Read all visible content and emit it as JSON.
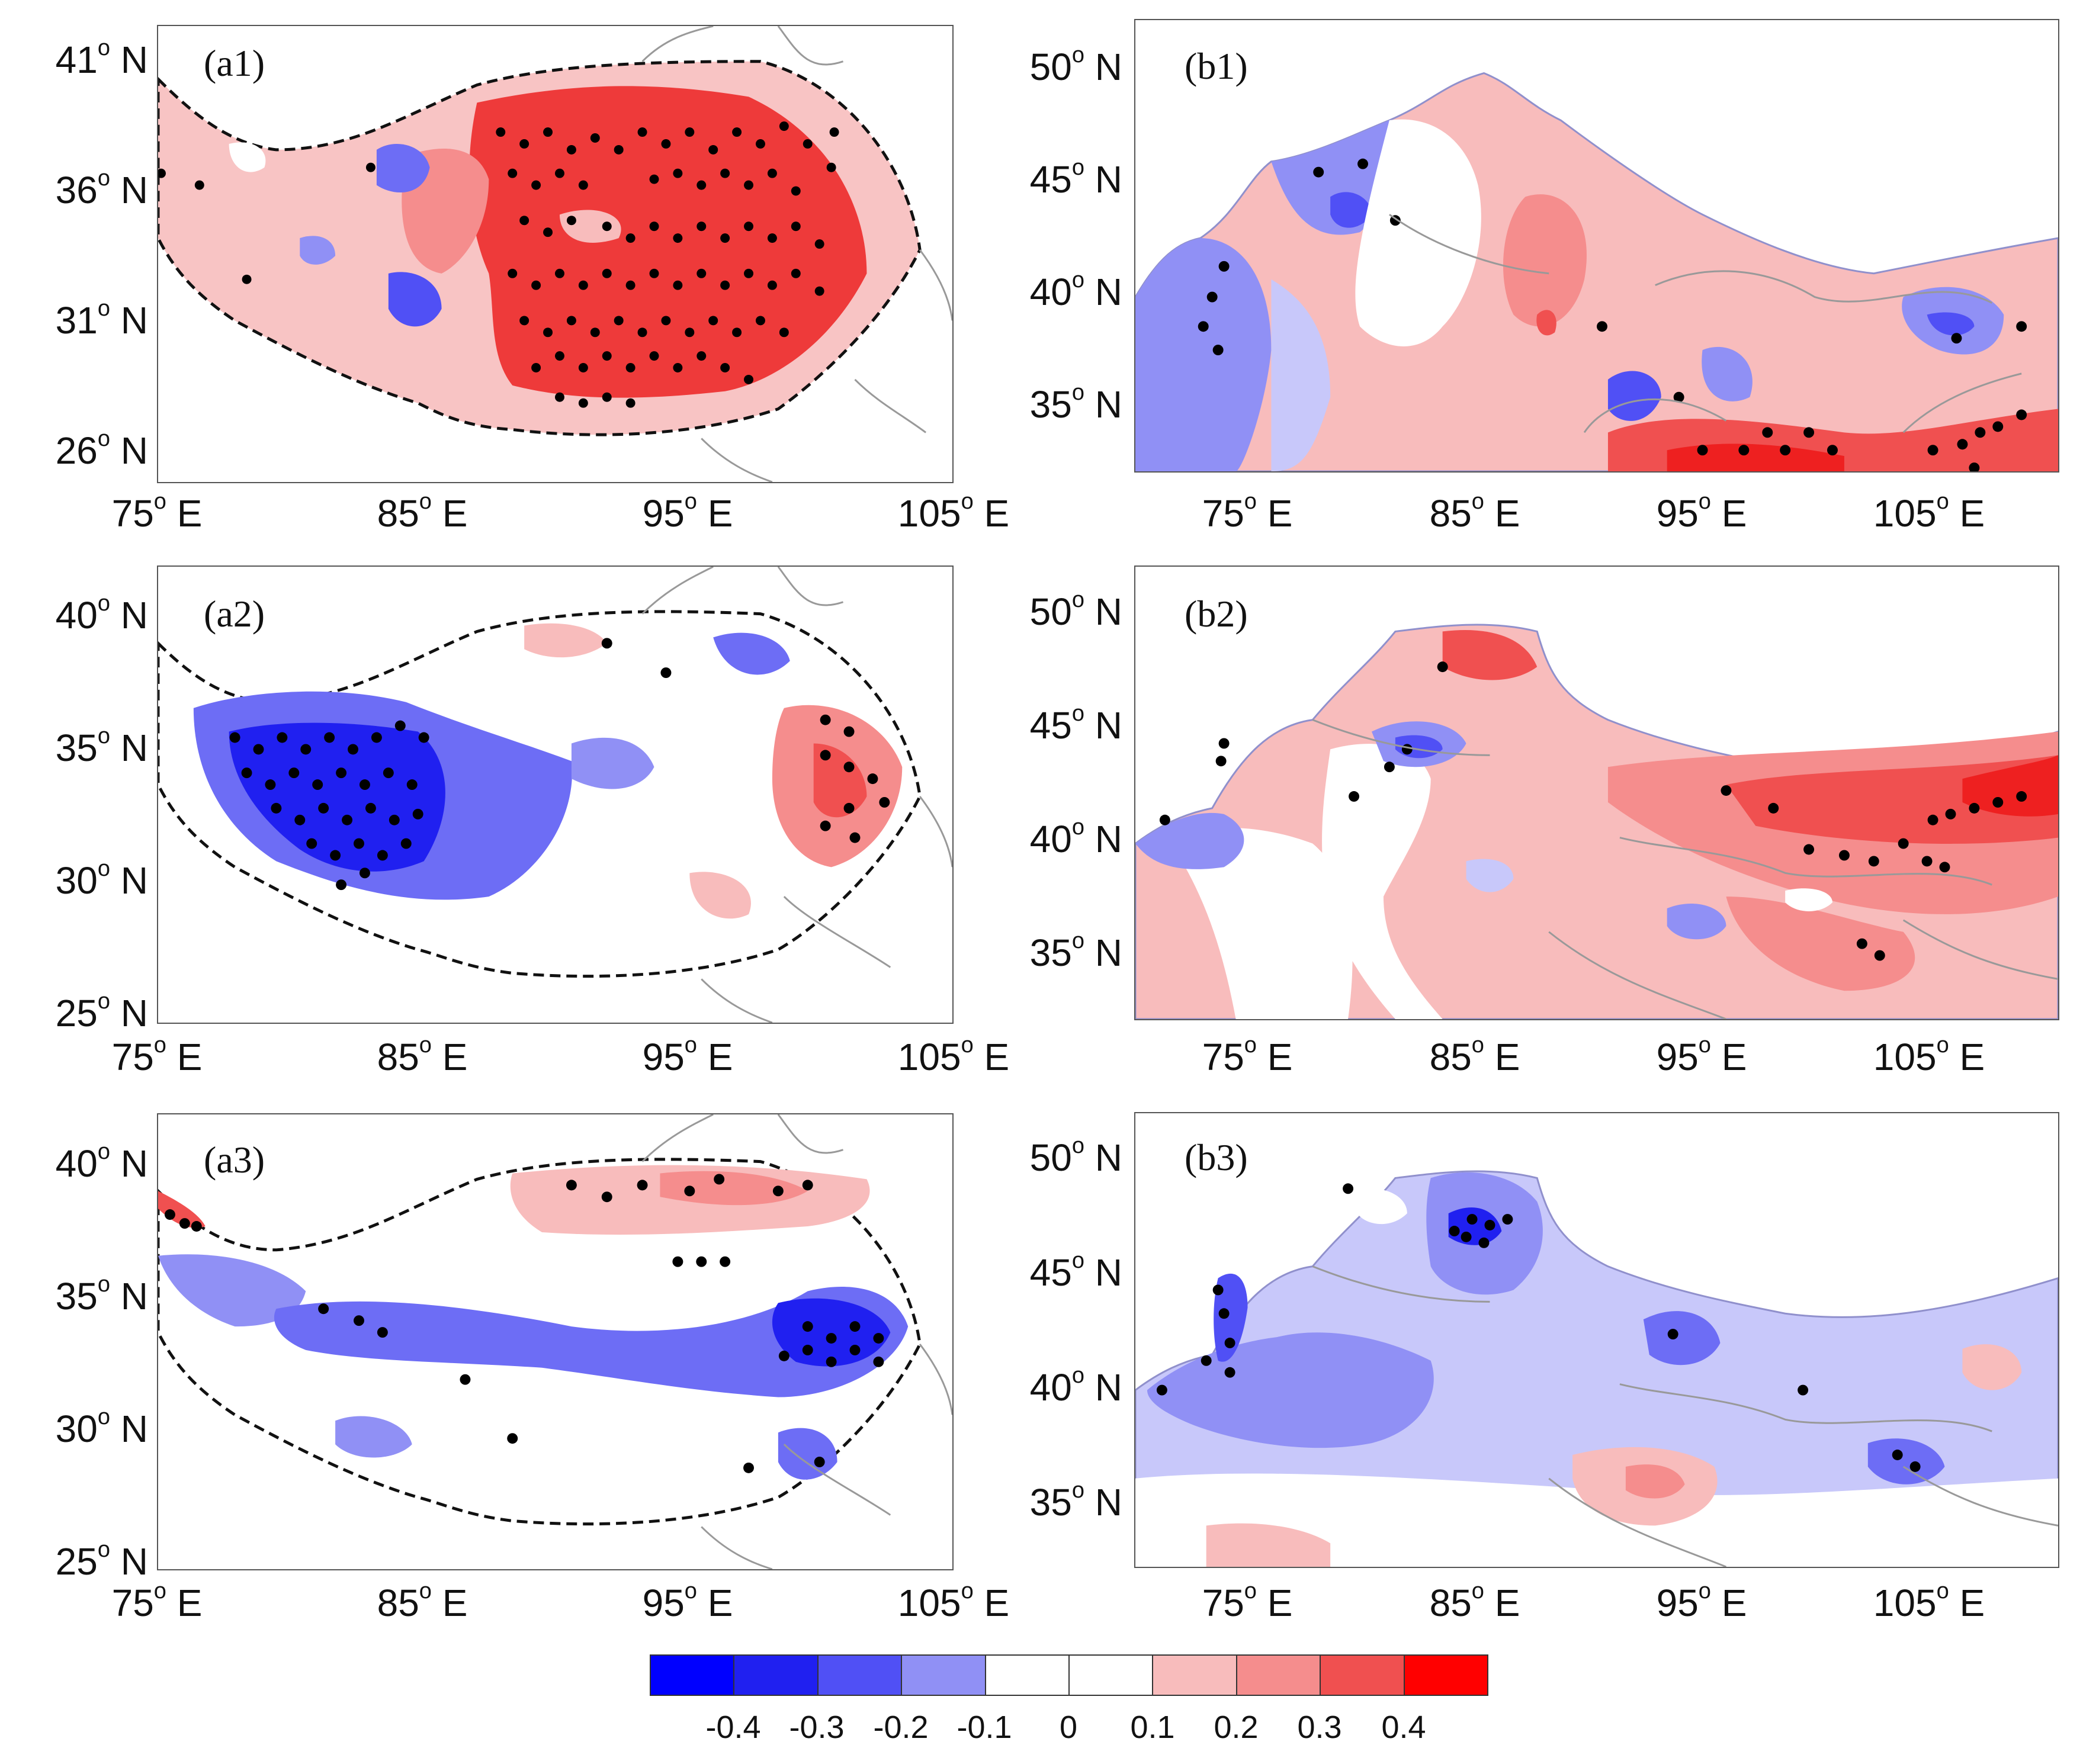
{
  "panels": {
    "a1": {
      "label": "(a1)",
      "y_ticks": [
        "41",
        "36",
        "31",
        "26"
      ],
      "x_ticks": [
        "75",
        "85",
        "95",
        "105"
      ],
      "anomaly": "positive"
    },
    "a2": {
      "label": "(a2)",
      "y_ticks": [
        "40",
        "35",
        "30",
        "25"
      ],
      "x_ticks": [
        "75",
        "85",
        "95",
        "105"
      ],
      "anomaly": "negative-west"
    },
    "a3": {
      "label": "(a3)",
      "y_ticks": [
        "40",
        "35",
        "30",
        "25"
      ],
      "x_ticks": [
        "75",
        "85",
        "95",
        "105"
      ],
      "anomaly": "negative-band"
    },
    "b1": {
      "label": "(b1)",
      "y_ticks": [
        "50",
        "45",
        "40",
        "35"
      ],
      "x_ticks": [
        "75",
        "85",
        "95",
        "105"
      ],
      "anomaly": "mixed"
    },
    "b2": {
      "label": "(b2)",
      "y_ticks": [
        "50",
        "45",
        "40",
        "35"
      ],
      "x_ticks": [
        "75",
        "85",
        "95",
        "105"
      ],
      "anomaly": "positive-east"
    },
    "b3": {
      "label": "(b3)",
      "y_ticks": [
        "50",
        "45",
        "40",
        "35"
      ],
      "x_ticks": [
        "75",
        "85",
        "95",
        "105"
      ],
      "anomaly": "negative"
    }
  },
  "units": {
    "lat": "N",
    "lon": "E",
    "degree_sup": "o"
  },
  "colorbar": {
    "colors": [
      "#0000ff",
      "#2020f0",
      "#5050f5",
      "#9090f5",
      "#ffffff",
      "#ffffff",
      "#f8bcbc",
      "#f58d8d",
      "#f05050",
      "#ff0000"
    ],
    "labels": [
      "-0.4",
      "-0.3",
      "-0.2",
      "-0.1",
      "0",
      "0.1",
      "0.2",
      "0.3",
      "0.4"
    ]
  }
}
